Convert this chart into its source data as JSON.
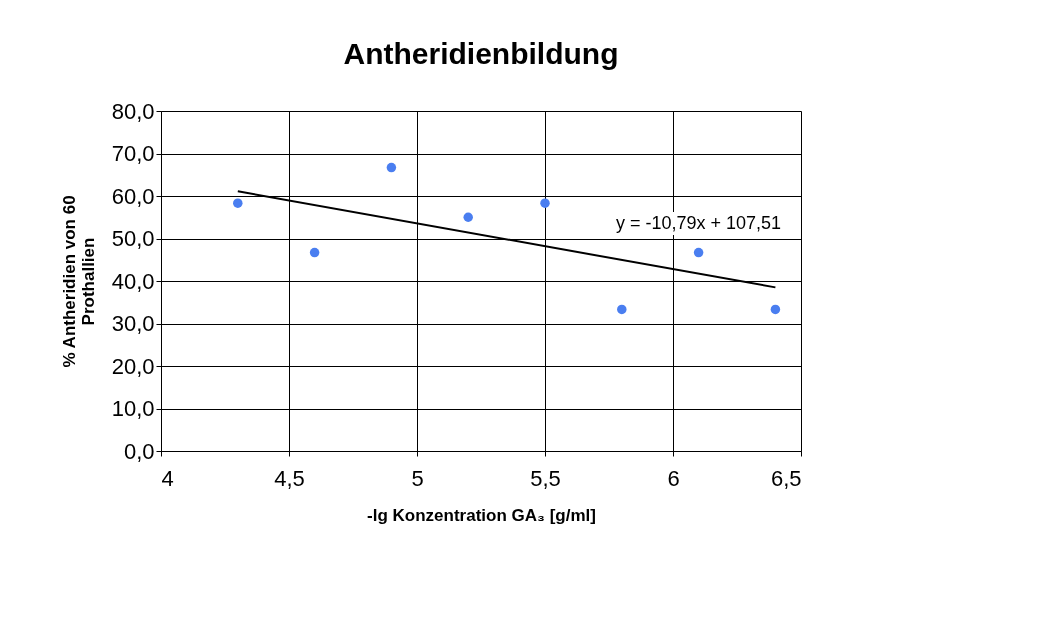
{
  "chart_data": {
    "type": "scatter",
    "title": "Antheridienbildung",
    "xlabel": "-lg Konzentration GA₃ [g/ml]",
    "ylabel": "% Antheridien von 60\nProthallien",
    "x": [
      4.3,
      4.6,
      4.9,
      5.2,
      5.5,
      5.8,
      6.1,
      6.4
    ],
    "series": [
      {
        "color": "#4a7ef0",
        "marker": "circle",
        "values": [
          58.3,
          46.7,
          66.7,
          55.0,
          58.3,
          33.3,
          46.7,
          33.3
        ]
      },
      {
        "type": "line",
        "color": "#000000",
        "marker": "none",
        "line_style": "solid",
        "x": [
          4.3,
          6.4
        ],
        "values": [
          61.1,
          38.5
        ]
      }
    ],
    "xlim": [
      4,
      6.5
    ],
    "xticks": [
      4,
      {
        "value": 4.5,
        "label": "4,5"
      },
      5,
      {
        "value": 5.5,
        "label": "5,5"
      },
      6,
      {
        "value": 6.5,
        "label": "6,5"
      }
    ],
    "ylim": [
      0,
      80
    ],
    "yticks": [
      {
        "value": 0,
        "label": "0,0"
      },
      {
        "value": 10,
        "label": "10,0"
      },
      {
        "value": 20,
        "label": "20,0"
      },
      {
        "value": 30,
        "label": "30,0"
      },
      {
        "value": 40,
        "label": "40,0"
      },
      {
        "value": 50,
        "label": "50,0"
      },
      {
        "value": 60,
        "label": "60,0"
      },
      {
        "value": 70,
        "label": "70,0"
      },
      {
        "value": 80,
        "label": "80,0"
      }
    ],
    "annotations": [
      "y = -10,79x + 107,51"
    ],
    "grid": true
  }
}
